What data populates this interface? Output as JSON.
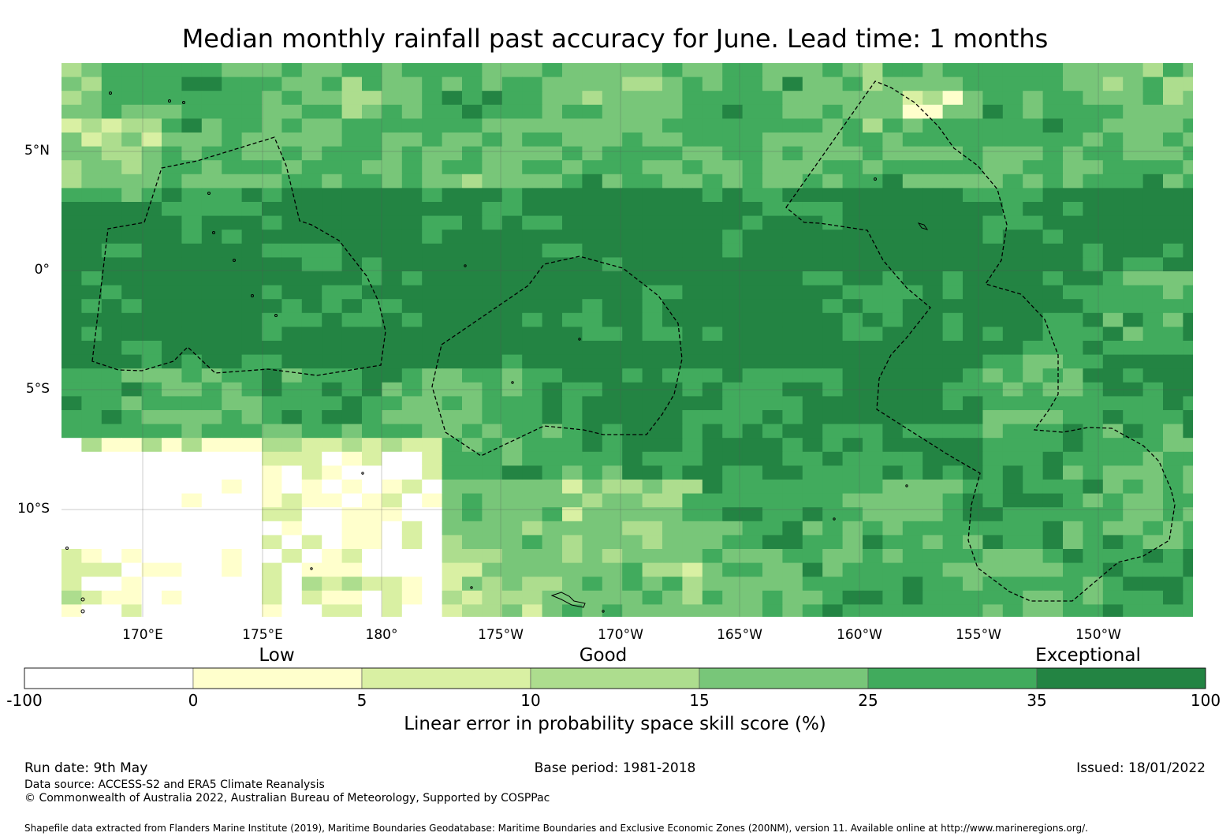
{
  "title": "Median monthly rainfall past accuracy for June. Lead time: 1 months",
  "map": {
    "lon_range": [
      "166.6°E",
      "146.1°W"
    ],
    "lat_range": [
      "8.7°N",
      "14.5°S"
    ],
    "lat_ticks": [
      {
        "label": "5°N",
        "value": 5
      },
      {
        "label": "0°",
        "value": 0
      },
      {
        "label": "5°S",
        "value": -5
      },
      {
        "label": "10°S",
        "value": -10
      }
    ],
    "lon_ticks": [
      {
        "label": "170°E",
        "value": 170
      },
      {
        "label": "175°E",
        "value": 175
      },
      {
        "label": "180°",
        "value": 180
      },
      {
        "label": "175°W",
        "value": 185
      },
      {
        "label": "170°W",
        "value": 190
      },
      {
        "label": "165°W",
        "value": 195
      },
      {
        "label": "160°W",
        "value": 200
      },
      {
        "label": "155°W",
        "value": 205
      },
      {
        "label": "150°W",
        "value": 210
      }
    ],
    "grid": "on",
    "eez_boundaries": "dashed"
  },
  "colorbar": {
    "category_labels": [
      "Low",
      "Good",
      "Exceptional"
    ],
    "ticks": [
      "-100",
      "0",
      "5",
      "10",
      "15",
      "25",
      "35",
      "100"
    ],
    "colors": [
      "#ffffff",
      "#ffffcc",
      "#d9f0a3",
      "#addd8e",
      "#78c679",
      "#41ab5d",
      "#238443"
    ],
    "title": "Linear error in probability space skill score (%)"
  },
  "footer": {
    "run_date": "Run date: 9th May",
    "base_period": "Base period: 1981-2018",
    "issued": "Issued: 18/01/2022",
    "data_source": "Data source: ACCESS-S2 and ERA5 Climate Reanalysis",
    "copyright": "© Commonwealth of Australia 2022, Australian Bureau of Meteorology, Supported by COSPPac",
    "shapefile": "Shapefile data extracted from Flanders Marine Institute (2019), Maritime Boundaries Geodatabase: Maritime Boundaries and Exclusive Economic Zones (200NM), version 11. Available online at http://www.marineregions.org/."
  }
}
